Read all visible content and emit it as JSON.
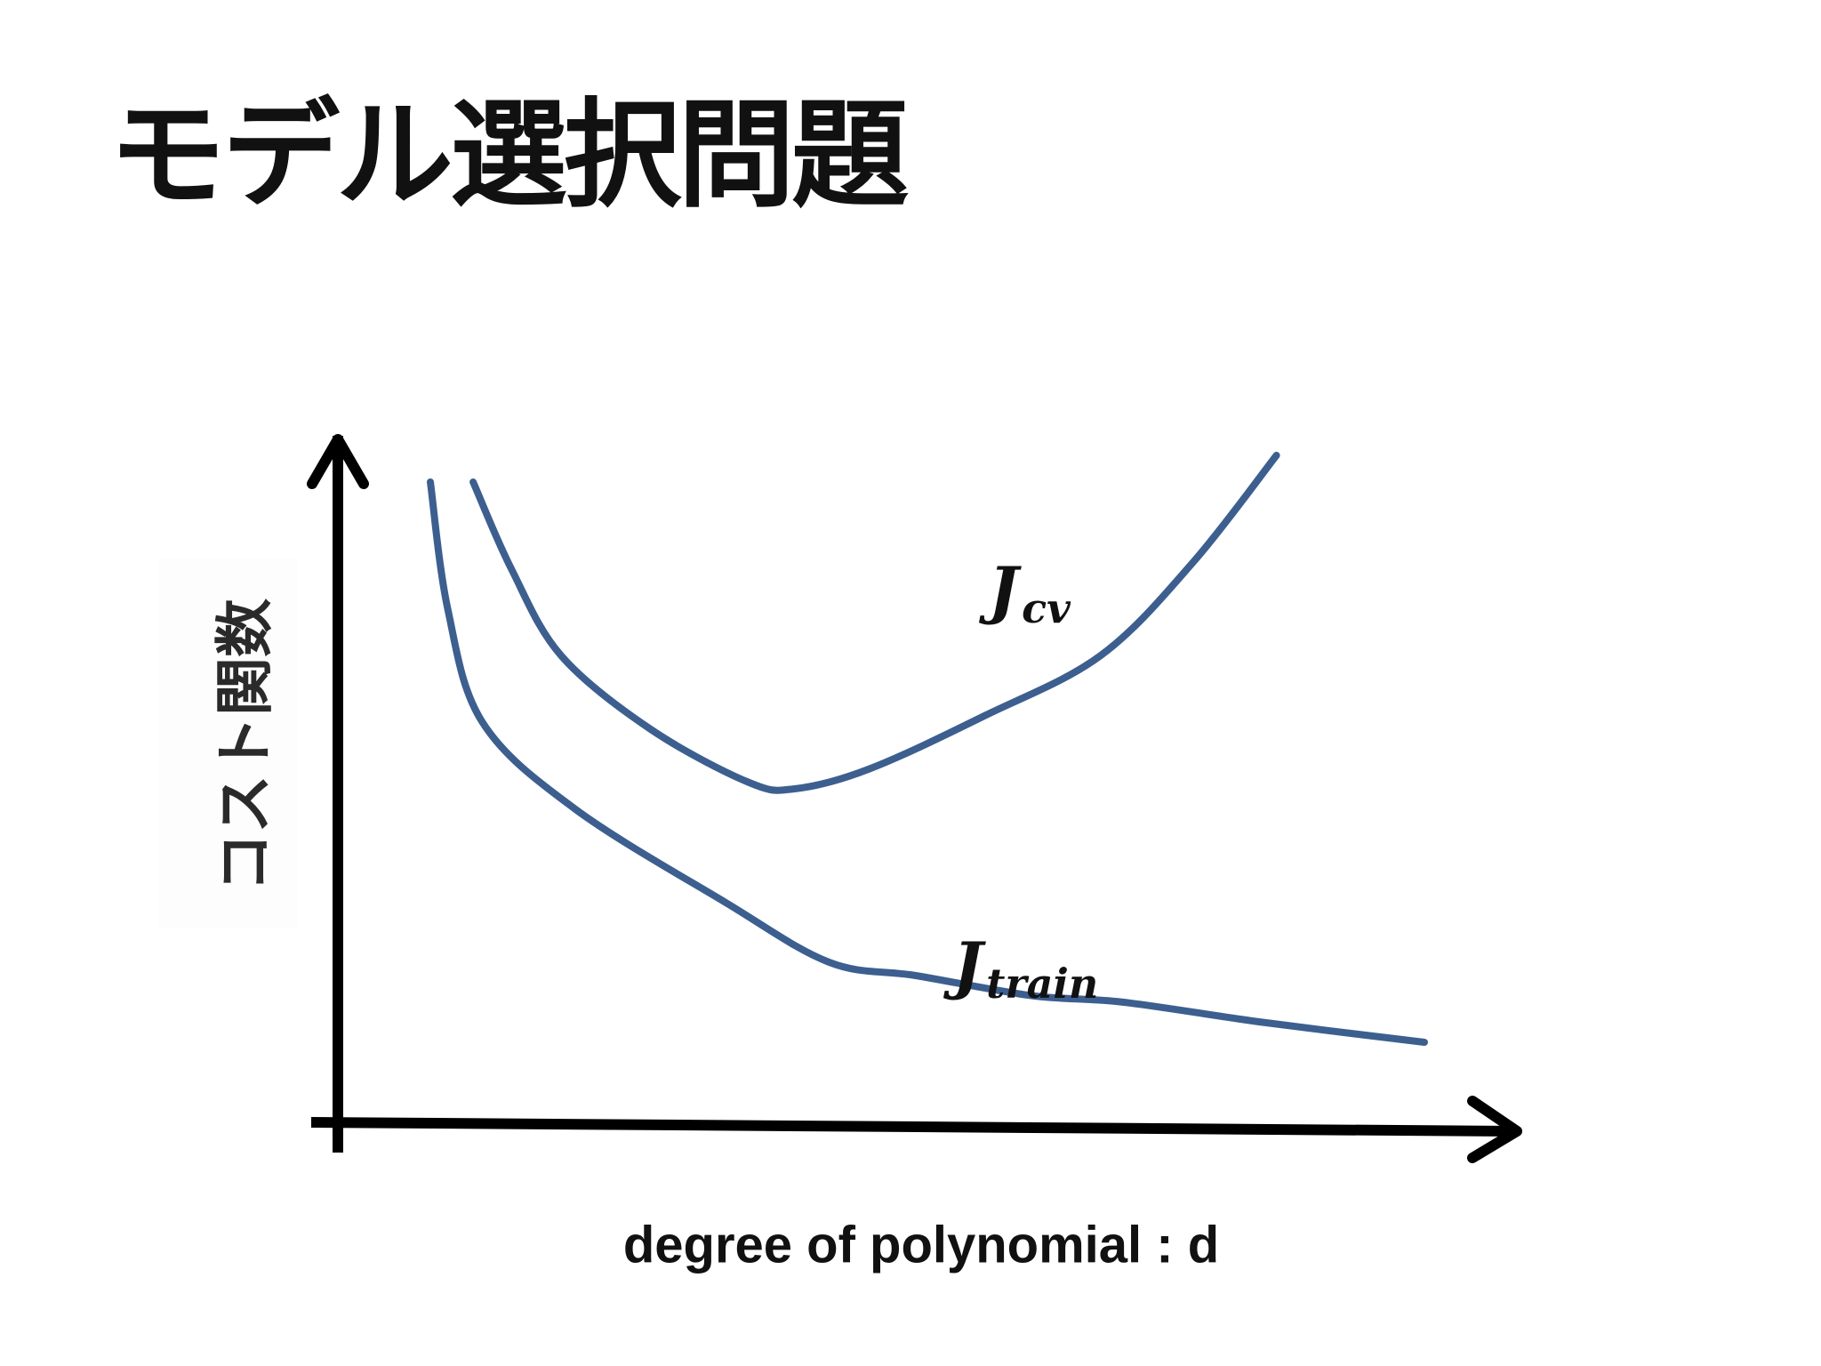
{
  "slide": {
    "title": "モデル選択問題"
  },
  "chart_data": {
    "type": "line",
    "xlabel": "degree of polynomial : d",
    "ylabel": "コスト関数",
    "grid": false,
    "colors": {
      "series": "#3d5f8f",
      "axes": "#000000"
    },
    "series": [
      {
        "name_main": "J",
        "name_sub": "cv",
        "points": [
          [
            0.117,
            0.96
          ],
          [
            0.15,
            0.83
          ],
          [
            0.193,
            0.7
          ],
          [
            0.27,
            0.59
          ],
          [
            0.355,
            0.51
          ],
          [
            0.395,
            0.5
          ],
          [
            0.46,
            0.53
          ],
          [
            0.56,
            0.61
          ],
          [
            0.66,
            0.7
          ],
          [
            0.74,
            0.84
          ],
          [
            0.812,
            1.0
          ]
        ]
      },
      {
        "name_main": "J",
        "name_sub": "train",
        "points": [
          [
            0.08,
            0.96
          ],
          [
            0.095,
            0.77
          ],
          [
            0.125,
            0.6
          ],
          [
            0.205,
            0.47
          ],
          [
            0.335,
            0.33
          ],
          [
            0.425,
            0.24
          ],
          [
            0.5,
            0.22
          ],
          [
            0.6,
            0.19
          ],
          [
            0.68,
            0.18
          ],
          [
            0.8,
            0.15
          ],
          [
            0.94,
            0.12
          ]
        ]
      }
    ]
  }
}
